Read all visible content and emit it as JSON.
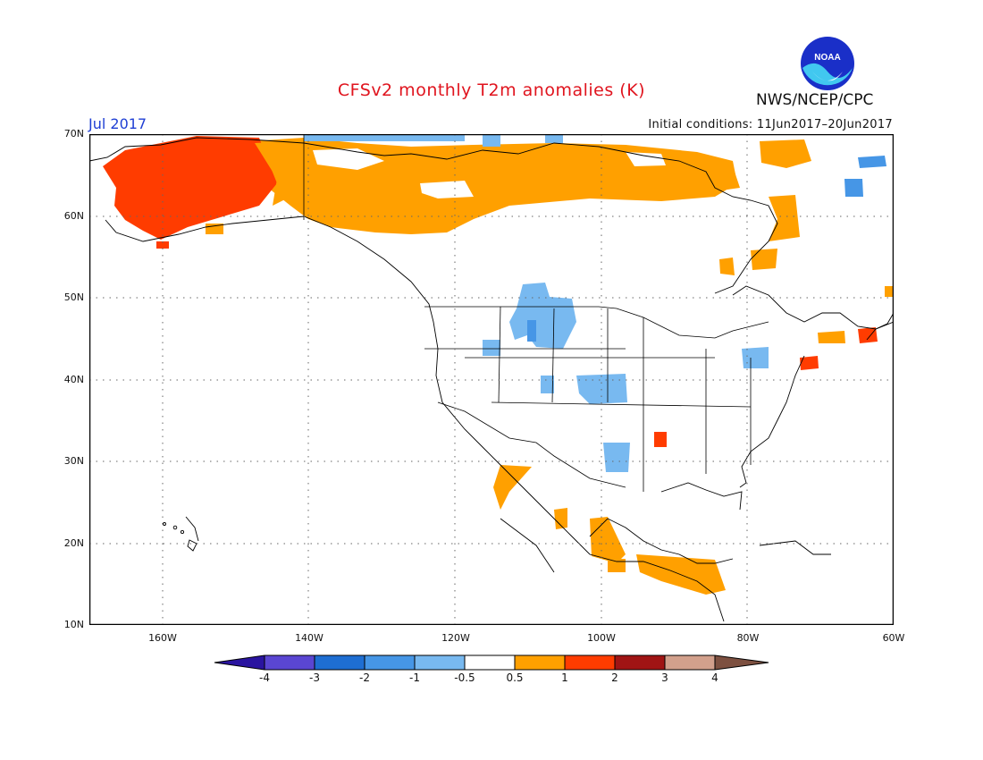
{
  "header": {
    "title": "CFSv2 monthly T2m anomalies (K)",
    "period": "Jul 2017",
    "initial_conditions": "Initial conditions: 11Jun2017–20Jun2017",
    "agency": "NWS/NCEP/CPC",
    "logo_text": "NOAA"
  },
  "map": {
    "projection": "equirectangular",
    "lon_range": [
      -170,
      -60
    ],
    "lat_range": [
      10,
      70
    ],
    "lat_labels": [
      "70N",
      "60N",
      "50N",
      "40N",
      "30N",
      "20N",
      "10N"
    ],
    "lon_labels": [
      "160W",
      "140W",
      "120W",
      "100W",
      "80W",
      "60W"
    ],
    "grid": "dotted",
    "anomaly_regions": [
      {
        "name": "alaska-warm-core",
        "category": "1",
        "color": "#ff3c00"
      },
      {
        "name": "northern-canada-warm",
        "category": "0.5",
        "color": "#ffa000"
      },
      {
        "name": "north-central-us-cool",
        "category": "-0.5",
        "color": "#78b9f0"
      },
      {
        "name": "mexico-central-america-warm",
        "category": "0.5",
        "color": "#ffa000"
      },
      {
        "name": "northeast-us-warm",
        "category": "1",
        "color": "#ff3c00"
      },
      {
        "name": "arctic-archipelago-cool",
        "category": "-1",
        "color": "#4696e6"
      }
    ]
  },
  "colorbar": {
    "labels": [
      "-4",
      "-3",
      "-2",
      "-1",
      "-0.5",
      "0.5",
      "1",
      "2",
      "3",
      "4"
    ],
    "colors": [
      "#2a14a0",
      "#5a46d2",
      "#1e6ed2",
      "#4696e6",
      "#78b9f0",
      "#ffffff",
      "#ffa000",
      "#ff3c00",
      "#a01414",
      "#d2a08c",
      "#7d5040"
    ]
  }
}
